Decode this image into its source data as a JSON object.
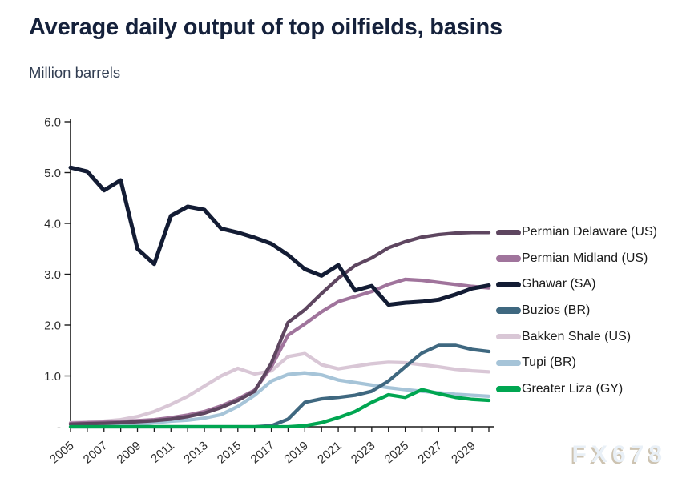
{
  "page": {
    "title": "Average daily output of top oilfields, basins",
    "subtitle": "Million barrels",
    "watermark": "FX678"
  },
  "chart_data": {
    "type": "line",
    "title": "Average daily output of top oilfields, basins",
    "ylabel": "Million barrels",
    "xlabel": "",
    "grid": false,
    "legend_position": "right",
    "ylim": [
      0,
      6
    ],
    "y_tick_labels": [
      "6.0",
      "5.0",
      "4.0",
      "3.0",
      "2.0",
      "1.0",
      "-"
    ],
    "x": [
      2005,
      2006,
      2007,
      2008,
      2009,
      2010,
      2011,
      2012,
      2013,
      2014,
      2015,
      2016,
      2017,
      2018,
      2019,
      2020,
      2021,
      2022,
      2023,
      2024,
      2025,
      2026,
      2027,
      2028,
      2029,
      2030
    ],
    "x_tick_labels": [
      "2005",
      "2007",
      "2009",
      "2011",
      "2013",
      "2015",
      "2017",
      "2019",
      "2021",
      "2023",
      "2025",
      "2027",
      "2029"
    ],
    "series": [
      {
        "name": "Permian Delaware (US)",
        "color": "#5e4660",
        "values": [
          0.05,
          0.06,
          0.07,
          0.08,
          0.1,
          0.12,
          0.15,
          0.2,
          0.27,
          0.38,
          0.52,
          0.7,
          1.25,
          2.05,
          2.3,
          2.62,
          2.92,
          3.17,
          3.32,
          3.52,
          3.64,
          3.73,
          3.78,
          3.81,
          3.82,
          3.82
        ]
      },
      {
        "name": "Permian Midland (US)",
        "color": "#a0749c",
        "values": [
          0.07,
          0.08,
          0.09,
          0.1,
          0.12,
          0.14,
          0.18,
          0.23,
          0.3,
          0.41,
          0.55,
          0.72,
          1.18,
          1.8,
          2.02,
          2.26,
          2.46,
          2.56,
          2.66,
          2.8,
          2.9,
          2.88,
          2.84,
          2.8,
          2.76,
          2.73
        ]
      },
      {
        "name": "Ghawar (SA)",
        "color": "#131c34",
        "values": [
          5.1,
          5.02,
          4.65,
          4.85,
          3.5,
          3.2,
          4.15,
          4.33,
          4.27,
          3.9,
          3.82,
          3.72,
          3.6,
          3.38,
          3.1,
          2.97,
          3.18,
          2.68,
          2.77,
          2.4,
          2.44,
          2.46,
          2.5,
          2.6,
          2.72,
          2.78
        ]
      },
      {
        "name": "Buzios (BR)",
        "color": "#3f6880",
        "values": [
          0,
          0,
          0,
          0,
          0,
          0,
          0,
          0,
          0,
          0,
          0,
          0,
          0.02,
          0.15,
          0.48,
          0.55,
          0.58,
          0.62,
          0.7,
          0.9,
          1.18,
          1.45,
          1.6,
          1.6,
          1.52,
          1.48
        ]
      },
      {
        "name": "Bakken Shale (US)",
        "color": "#d9c7d6",
        "values": [
          0.08,
          0.09,
          0.11,
          0.14,
          0.2,
          0.3,
          0.44,
          0.6,
          0.8,
          1.0,
          1.15,
          1.04,
          1.1,
          1.38,
          1.44,
          1.22,
          1.14,
          1.19,
          1.24,
          1.27,
          1.26,
          1.22,
          1.18,
          1.13,
          1.1,
          1.08
        ]
      },
      {
        "name": "Tupi (BR)",
        "color": "#a6c4d8",
        "values": [
          0,
          0,
          0.01,
          0.02,
          0.04,
          0.08,
          0.11,
          0.13,
          0.17,
          0.24,
          0.4,
          0.62,
          0.9,
          1.03,
          1.06,
          1.02,
          0.92,
          0.87,
          0.82,
          0.77,
          0.73,
          0.7,
          0.67,
          0.64,
          0.62,
          0.6
        ]
      },
      {
        "name": "Greater Liza (GY)",
        "color": "#00a651",
        "values": [
          0,
          0,
          0,
          0,
          0,
          0,
          0,
          0,
          0,
          0,
          0,
          0,
          0,
          0,
          0.02,
          0.08,
          0.18,
          0.3,
          0.48,
          0.63,
          0.58,
          0.73,
          0.65,
          0.58,
          0.54,
          0.52
        ]
      }
    ],
    "paint_order": [
      "Bakken Shale (US)",
      "Tupi (BR)",
      "Permian Midland (US)",
      "Permian Delaware (US)",
      "Ghawar (SA)",
      "Buzios (BR)",
      "Greater Liza (GY)"
    ]
  }
}
